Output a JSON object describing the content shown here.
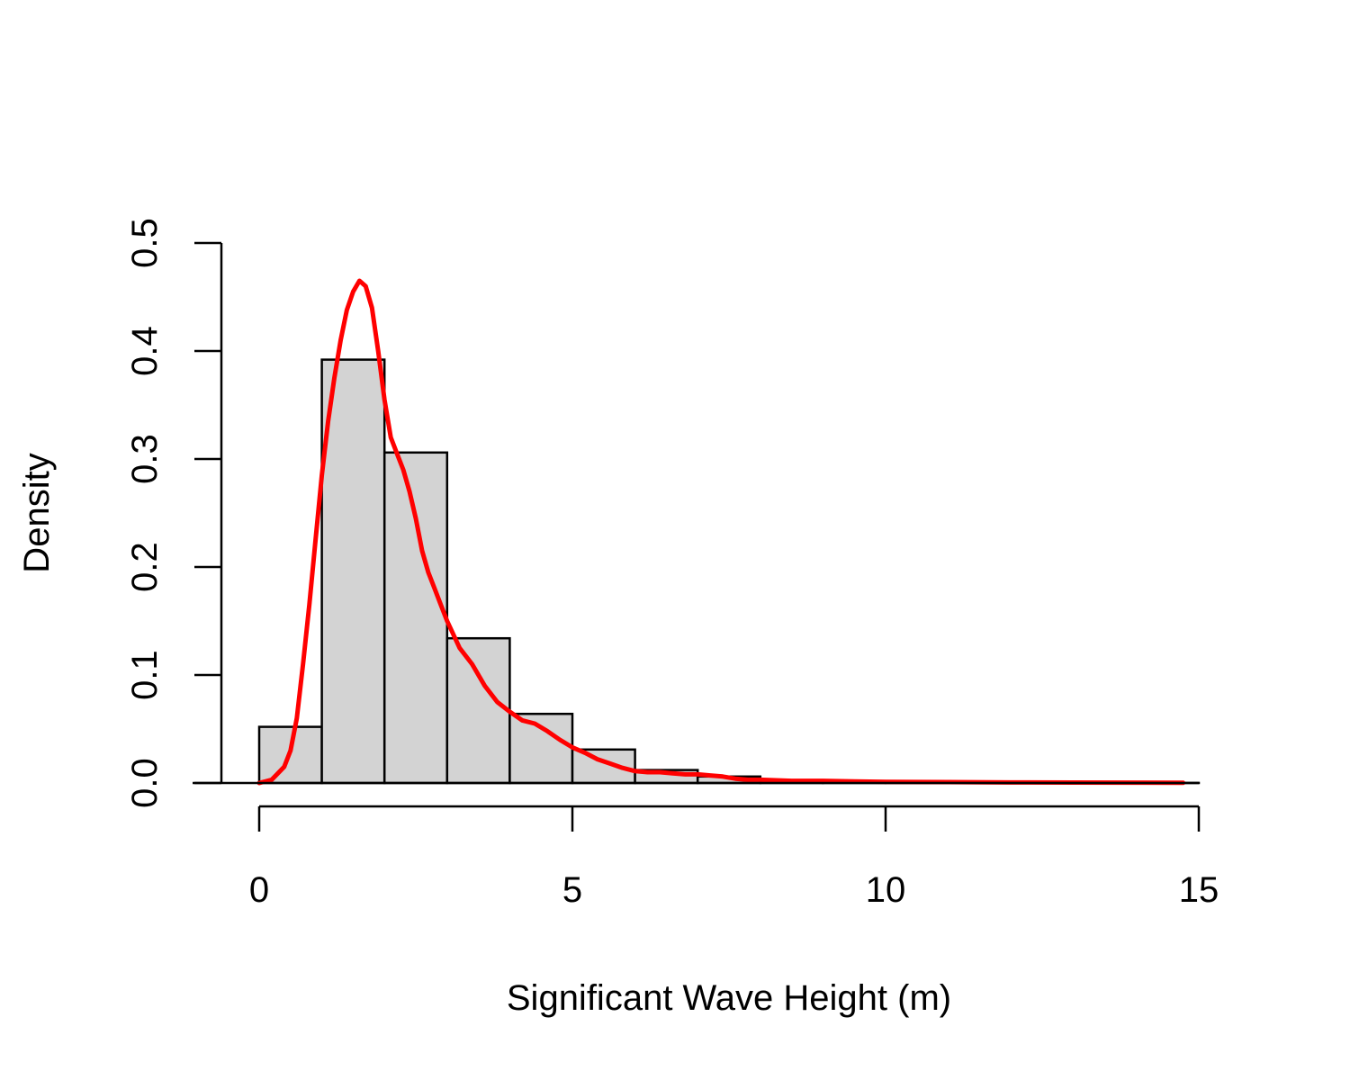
{
  "chart_data": {
    "type": "bar",
    "title": "",
    "xlabel": "Significant Wave Height (m)",
    "ylabel": "Density",
    "xlim": [
      0,
      15
    ],
    "ylim": [
      0,
      0.5
    ],
    "x_ticks": [
      0,
      5,
      10,
      15
    ],
    "x_tick_labels": [
      "0",
      "5",
      "10",
      "15"
    ],
    "y_ticks": [
      0,
      0.1,
      0.2,
      0.3,
      0.4,
      0.5
    ],
    "y_tick_labels": [
      "0.0",
      "0.1",
      "0.2",
      "0.3",
      "0.4",
      "0.5"
    ],
    "grid": false,
    "histogram": {
      "bin_edges": [
        0,
        1,
        2,
        3,
        4,
        5,
        6,
        7,
        8,
        9,
        10,
        11,
        12,
        13,
        14,
        15
      ],
      "density": [
        0.052,
        0.392,
        0.306,
        0.134,
        0.064,
        0.031,
        0.012,
        0.006,
        0.002,
        0.001,
        0.0005,
        0.0003,
        0.0002,
        0.0001,
        0.0001
      ],
      "fill_color": "#d3d3d3",
      "edge_color": "#000000"
    },
    "series": [
      {
        "type": "line",
        "color": "#ff0000",
        "x": [
          0.0,
          0.2,
          0.4,
          0.5,
          0.6,
          0.7,
          0.8,
          0.9,
          1.0,
          1.1,
          1.2,
          1.3,
          1.4,
          1.5,
          1.6,
          1.7,
          1.8,
          1.9,
          2.0,
          2.1,
          2.2,
          2.3,
          2.4,
          2.5,
          2.6,
          2.7,
          2.8,
          2.9,
          3.0,
          3.2,
          3.4,
          3.6,
          3.8,
          4.0,
          4.2,
          4.4,
          4.6,
          4.8,
          5.0,
          5.2,
          5.4,
          5.6,
          5.8,
          6.0,
          6.2,
          6.4,
          6.6,
          6.8,
          7.0,
          7.2,
          7.4,
          7.6,
          7.8,
          8.0,
          8.5,
          9.0,
          9.5,
          10.0,
          11.0,
          12.0,
          13.0,
          14.0,
          14.75
        ],
        "y": [
          0.0,
          0.003,
          0.015,
          0.03,
          0.06,
          0.11,
          0.165,
          0.225,
          0.285,
          0.335,
          0.375,
          0.41,
          0.438,
          0.455,
          0.465,
          0.46,
          0.44,
          0.4,
          0.355,
          0.32,
          0.305,
          0.29,
          0.27,
          0.245,
          0.215,
          0.195,
          0.18,
          0.165,
          0.15,
          0.125,
          0.11,
          0.09,
          0.075,
          0.066,
          0.058,
          0.055,
          0.048,
          0.04,
          0.033,
          0.028,
          0.022,
          0.018,
          0.014,
          0.011,
          0.01,
          0.01,
          0.009,
          0.008,
          0.008,
          0.007,
          0.006,
          0.004,
          0.003,
          0.003,
          0.002,
          0.002,
          0.0015,
          0.001,
          0.0008,
          0.0005,
          0.0004,
          0.0003,
          0.0002
        ]
      }
    ]
  }
}
